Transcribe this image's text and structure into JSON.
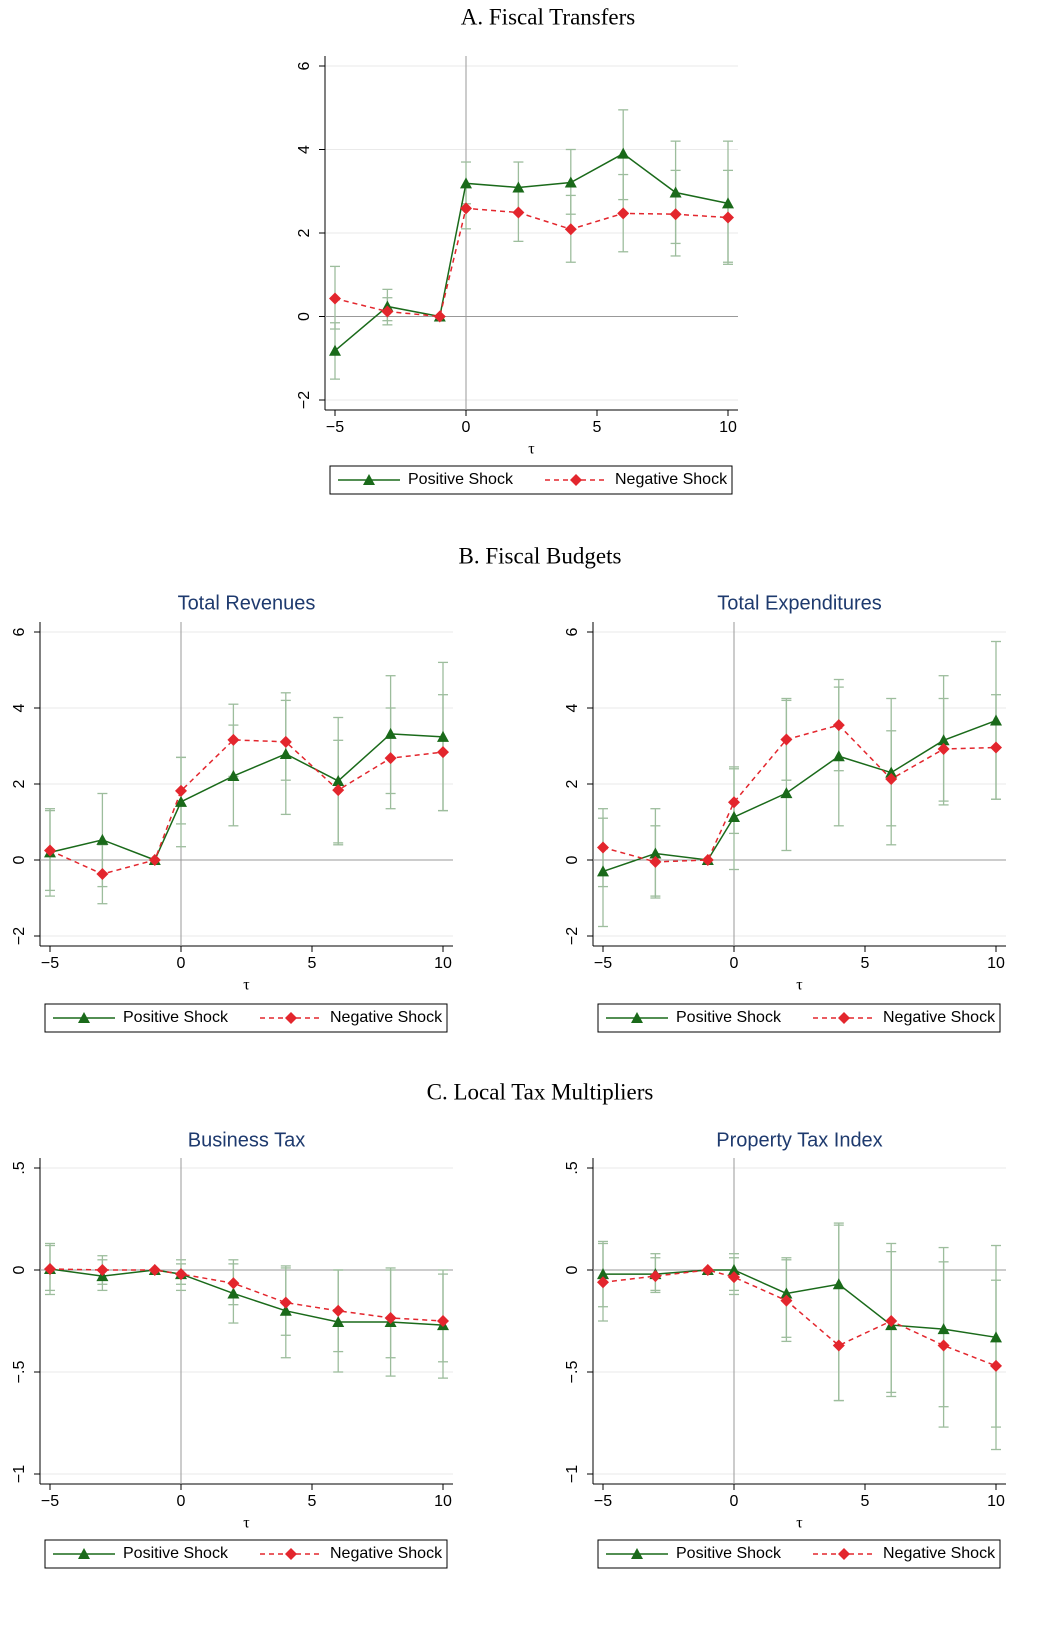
{
  "sections": [
    "A. Fiscal Transfers",
    "B. Fiscal Budgets",
    "C. Local Tax Multipliers"
  ],
  "chart_data": [
    {
      "type": "line",
      "xlabel": "τ",
      "x": [
        -5,
        -3,
        -1,
        0,
        2,
        4,
        6,
        8,
        10
      ],
      "xlim": [
        -5,
        10
      ],
      "xticks": [
        {
          "value": -5,
          "label": "−5"
        },
        0,
        5,
        10
      ],
      "ylim": [
        -2,
        6
      ],
      "yticks": [
        {
          "value": -2,
          "label": "−2"
        },
        0,
        2,
        4,
        6
      ],
      "grid": true,
      "xline": 0,
      "yline": 0,
      "ci_color": "#9dbd9d",
      "series": [
        {
          "name": "Positive Shock",
          "color": "#1a6a1a",
          "marker": "triangle",
          "dash": false,
          "values": [
            -0.82,
            0.24,
            0,
            3.19,
            3.09,
            3.21,
            3.9,
            2.97,
            2.71
          ],
          "ci_low": [
            -1.5,
            -0.1,
            0,
            2.7,
            2.5,
            2.45,
            2.8,
            1.75,
            1.25
          ],
          "ci_high": [
            -0.15,
            0.65,
            0,
            3.7,
            3.7,
            4.0,
            4.95,
            4.2,
            4.2
          ]
        },
        {
          "name": "Negative Shock",
          "color": "#e3262d",
          "marker": "diamond",
          "dash": true,
          "values": [
            0.43,
            0.12,
            0,
            2.59,
            2.49,
            2.09,
            2.47,
            2.45,
            2.37
          ],
          "ci_low": [
            -0.3,
            -0.2,
            0,
            2.1,
            1.8,
            1.3,
            1.55,
            1.45,
            1.3
          ],
          "ci_high": [
            1.2,
            0.45,
            0,
            3.1,
            3.1,
            2.9,
            3.4,
            3.5,
            3.5
          ]
        }
      ]
    },
    {
      "type": "line",
      "title": "Total Revenues",
      "xlabel": "τ",
      "x": [
        -5,
        -3,
        -1,
        0,
        2,
        4,
        6,
        8,
        10
      ],
      "xlim": [
        -5,
        10
      ],
      "xticks": [
        {
          "value": -5,
          "label": "−5"
        },
        0,
        5,
        10
      ],
      "ylim": [
        -2,
        6
      ],
      "yticks": [
        {
          "value": -2,
          "label": "−2"
        },
        0,
        2,
        4,
        6
      ],
      "grid": true,
      "xline": 0,
      "yline": 0,
      "ci_color": "#9dbd9d",
      "series": [
        {
          "name": "Positive Shock",
          "color": "#1a6a1a",
          "marker": "triangle",
          "dash": false,
          "values": [
            0.2,
            0.53,
            0,
            1.53,
            2.21,
            2.79,
            2.08,
            3.32,
            3.24
          ],
          "ci_low": [
            -0.95,
            -0.7,
            0,
            0.35,
            0.9,
            1.2,
            0.45,
            1.75,
            1.3
          ],
          "ci_high": [
            1.35,
            1.75,
            0,
            2.7,
            4.1,
            4.4,
            3.75,
            4.85,
            5.2
          ]
        },
        {
          "name": "Negative Shock",
          "color": "#e3262d",
          "marker": "diamond",
          "dash": true,
          "values": [
            0.25,
            -0.37,
            0,
            1.82,
            3.16,
            3.11,
            1.84,
            2.68,
            2.84
          ],
          "ci_low": [
            -0.8,
            -1.15,
            0,
            0.95,
            2.2,
            2.1,
            0.4,
            1.35,
            1.3
          ],
          "ci_high": [
            1.3,
            0.4,
            0,
            2.7,
            3.55,
            4.2,
            3.15,
            4.0,
            4.35
          ]
        }
      ]
    },
    {
      "type": "line",
      "title": "Total Expenditures",
      "xlabel": "τ",
      "x": [
        -5,
        -3,
        -1,
        0,
        2,
        4,
        6,
        8,
        10
      ],
      "xlim": [
        -5,
        10
      ],
      "xticks": [
        {
          "value": -5,
          "label": "−5"
        },
        0,
        5,
        10
      ],
      "ylim": [
        -2,
        6
      ],
      "yticks": [
        {
          "value": -2,
          "label": "−2"
        },
        0,
        2,
        4,
        6
      ],
      "grid": true,
      "xline": 0,
      "yline": 0,
      "ci_color": "#9dbd9d",
      "series": [
        {
          "name": "Positive Shock",
          "color": "#1a6a1a",
          "marker": "triangle",
          "dash": false,
          "values": [
            -0.3,
            0.17,
            0,
            1.13,
            1.76,
            2.73,
            2.3,
            3.15,
            3.67
          ],
          "ci_low": [
            -1.75,
            -1.0,
            0,
            -0.25,
            0.25,
            0.9,
            0.4,
            1.45,
            1.6
          ],
          "ci_high": [
            1.1,
            1.35,
            0,
            2.4,
            4.25,
            4.55,
            4.25,
            4.85,
            5.75
          ]
        },
        {
          "name": "Negative Shock",
          "color": "#e3262d",
          "marker": "diamond",
          "dash": true,
          "values": [
            0.33,
            -0.05,
            0,
            1.52,
            3.17,
            3.55,
            2.13,
            2.92,
            2.96
          ],
          "ci_low": [
            -0.7,
            -0.95,
            0,
            0.7,
            2.1,
            2.35,
            0.9,
            1.55,
            1.6
          ],
          "ci_high": [
            1.35,
            0.9,
            0,
            2.45,
            4.2,
            4.75,
            3.4,
            4.25,
            4.35
          ]
        }
      ]
    },
    {
      "type": "line",
      "title": "Business Tax",
      "xlabel": "τ",
      "x": [
        -5,
        -3,
        -1,
        0,
        2,
        4,
        6,
        8,
        10
      ],
      "xlim": [
        -5,
        10
      ],
      "xticks": [
        {
          "value": -5,
          "label": "−5"
        },
        0,
        5,
        10
      ],
      "ylim": [
        -1,
        0.5
      ],
      "yticks": [
        {
          "value": -1,
          "label": "−1"
        },
        {
          "value": -0.5,
          "label": "−.5"
        },
        0,
        {
          "value": 0.5,
          "label": ".5"
        }
      ],
      "grid": true,
      "xline": 0,
      "yline": 0,
      "ci_color": "#9dbd9d",
      "series": [
        {
          "name": "Positive Shock",
          "color": "#1a6a1a",
          "marker": "triangle",
          "dash": false,
          "values": [
            0.005,
            -0.03,
            0,
            -0.02,
            -0.115,
            -0.2,
            -0.255,
            -0.255,
            -0.27
          ],
          "ci_low": [
            -0.12,
            -0.1,
            0,
            -0.1,
            -0.26,
            -0.43,
            -0.5,
            -0.52,
            -0.53
          ],
          "ci_high": [
            0.13,
            0.07,
            0,
            0.05,
            0.05,
            0.01,
            0.0,
            0.01,
            0.0
          ]
        },
        {
          "name": "Negative Shock",
          "color": "#e3262d",
          "marker": "diamond",
          "dash": true,
          "values": [
            0.005,
            0,
            0,
            -0.02,
            -0.065,
            -0.16,
            -0.2,
            -0.235,
            -0.25
          ],
          "ci_low": [
            -0.1,
            -0.07,
            0,
            -0.07,
            -0.17,
            -0.32,
            -0.4,
            -0.43,
            -0.45
          ],
          "ci_high": [
            0.12,
            0.05,
            0,
            0.03,
            0.03,
            0.02,
            0.0,
            0.0,
            -0.02
          ]
        }
      ]
    },
    {
      "type": "line",
      "title": "Property Tax Index",
      "xlabel": "τ",
      "x": [
        -5,
        -3,
        -1,
        0,
        2,
        4,
        6,
        8,
        10
      ],
      "xlim": [
        -5,
        10
      ],
      "xticks": [
        {
          "value": -5,
          "label": "−5"
        },
        0,
        5,
        10
      ],
      "ylim": [
        -1,
        0.5
      ],
      "yticks": [
        {
          "value": -1,
          "label": "−1"
        },
        {
          "value": -0.5,
          "label": "−.5"
        },
        0,
        {
          "value": 0.5,
          "label": ".5"
        }
      ],
      "grid": true,
      "xline": 0,
      "yline": 0,
      "ci_color": "#9dbd9d",
      "series": [
        {
          "name": "Positive Shock",
          "color": "#1a6a1a",
          "marker": "triangle",
          "dash": false,
          "values": [
            -0.02,
            -0.02,
            0,
            0.0,
            -0.115,
            -0.07,
            -0.27,
            -0.29,
            -0.33
          ],
          "ci_low": [
            -0.25,
            -0.11,
            0,
            -0.12,
            -0.35,
            -0.64,
            -0.62,
            -0.77,
            -0.88
          ],
          "ci_high": [
            0.14,
            0.08,
            0,
            0.08,
            0.06,
            0.23,
            0.13,
            0.11,
            0.12
          ]
        },
        {
          "name": "Negative Shock",
          "color": "#e3262d",
          "marker": "diamond",
          "dash": true,
          "values": [
            -0.06,
            -0.03,
            0,
            -0.035,
            -0.15,
            -0.37,
            -0.25,
            -0.37,
            -0.47
          ],
          "ci_low": [
            -0.18,
            -0.1,
            0,
            -0.1,
            -0.33,
            -0.64,
            -0.6,
            -0.67,
            -0.77
          ],
          "ci_high": [
            0.13,
            0.06,
            0,
            0.06,
            0.05,
            0.22,
            0.09,
            0.04,
            -0.05
          ]
        }
      ]
    }
  ]
}
